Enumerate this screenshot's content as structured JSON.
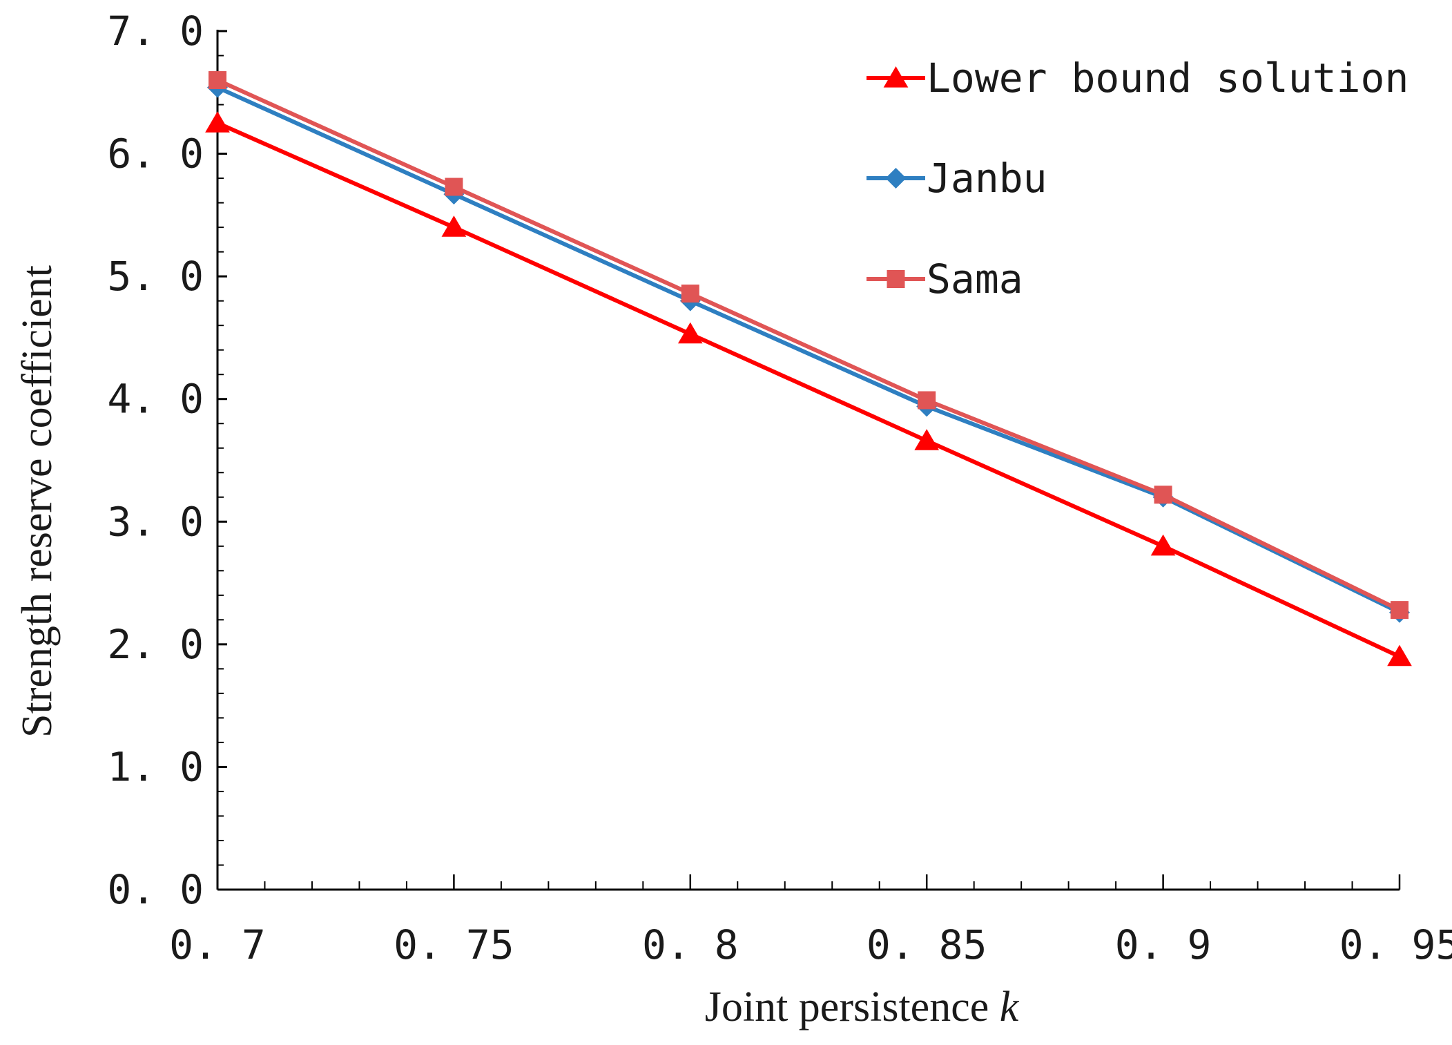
{
  "chart_data": {
    "type": "line",
    "title": "",
    "xlabel": "Joint persistence ",
    "xlabel_var": "k",
    "ylabel": "Strength reserve coefficient",
    "x": [
      0.7,
      0.75,
      0.8,
      0.85,
      0.9,
      0.95
    ],
    "x_tick_labels": [
      "0. 7",
      "0. 75",
      "0. 8",
      "0. 85",
      "0. 9",
      "0. 95"
    ],
    "xlim": [
      0.7,
      0.95
    ],
    "x_minor_step": 0.01,
    "ylim": [
      0,
      7
    ],
    "y_ticks": [
      0,
      1,
      2,
      3,
      4,
      5,
      6,
      7
    ],
    "y_tick_labels": [
      "0. 0",
      "1. 0",
      "2. 0",
      "3. 0",
      "4. 0",
      "5. 0",
      "6. 0",
      "7. 0"
    ],
    "y_minor_step": 0.2,
    "grid": false,
    "legend_position": "top-right",
    "series": [
      {
        "name": "Lower bound solution",
        "marker": "triangle",
        "color": "#ff0000",
        "values": [
          6.25,
          5.4,
          4.53,
          3.66,
          2.8,
          1.9
        ]
      },
      {
        "name": "Janbu",
        "marker": "diamond",
        "color": "#2e7fc1",
        "values": [
          6.54,
          5.67,
          4.8,
          3.94,
          3.2,
          2.26
        ]
      },
      {
        "name": "Sama",
        "marker": "square",
        "color": "#e05555",
        "values": [
          6.6,
          5.73,
          4.86,
          3.99,
          3.22,
          2.28
        ]
      }
    ]
  }
}
